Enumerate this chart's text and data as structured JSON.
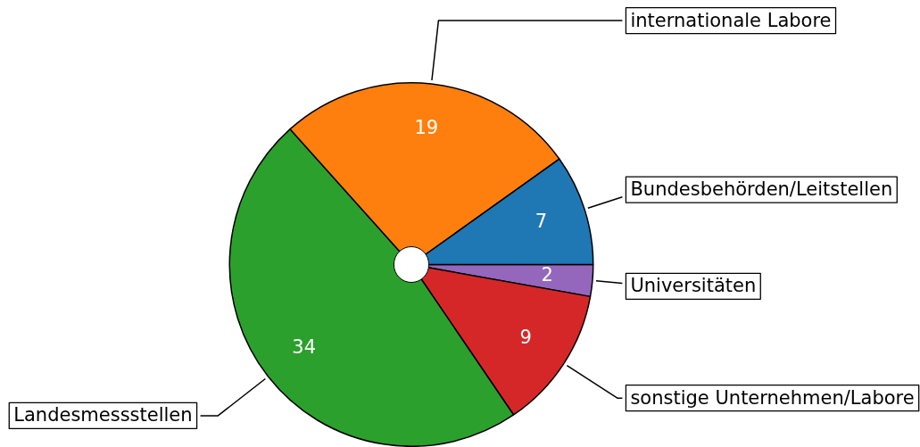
{
  "chart_data": {
    "type": "pie",
    "categories": [
      "Bundesbehörden/Leitstellen",
      "internationale Labore",
      "Landesmessstellen",
      "sonstige Unternehmen/Labore",
      "Universitäten"
    ],
    "values": [
      7,
      19,
      34,
      9,
      2
    ],
    "colors": [
      "#1f77b4",
      "#ff7f0e",
      "#2ca02c",
      "#d62728",
      "#9467bd"
    ],
    "data_labels": true
  }
}
